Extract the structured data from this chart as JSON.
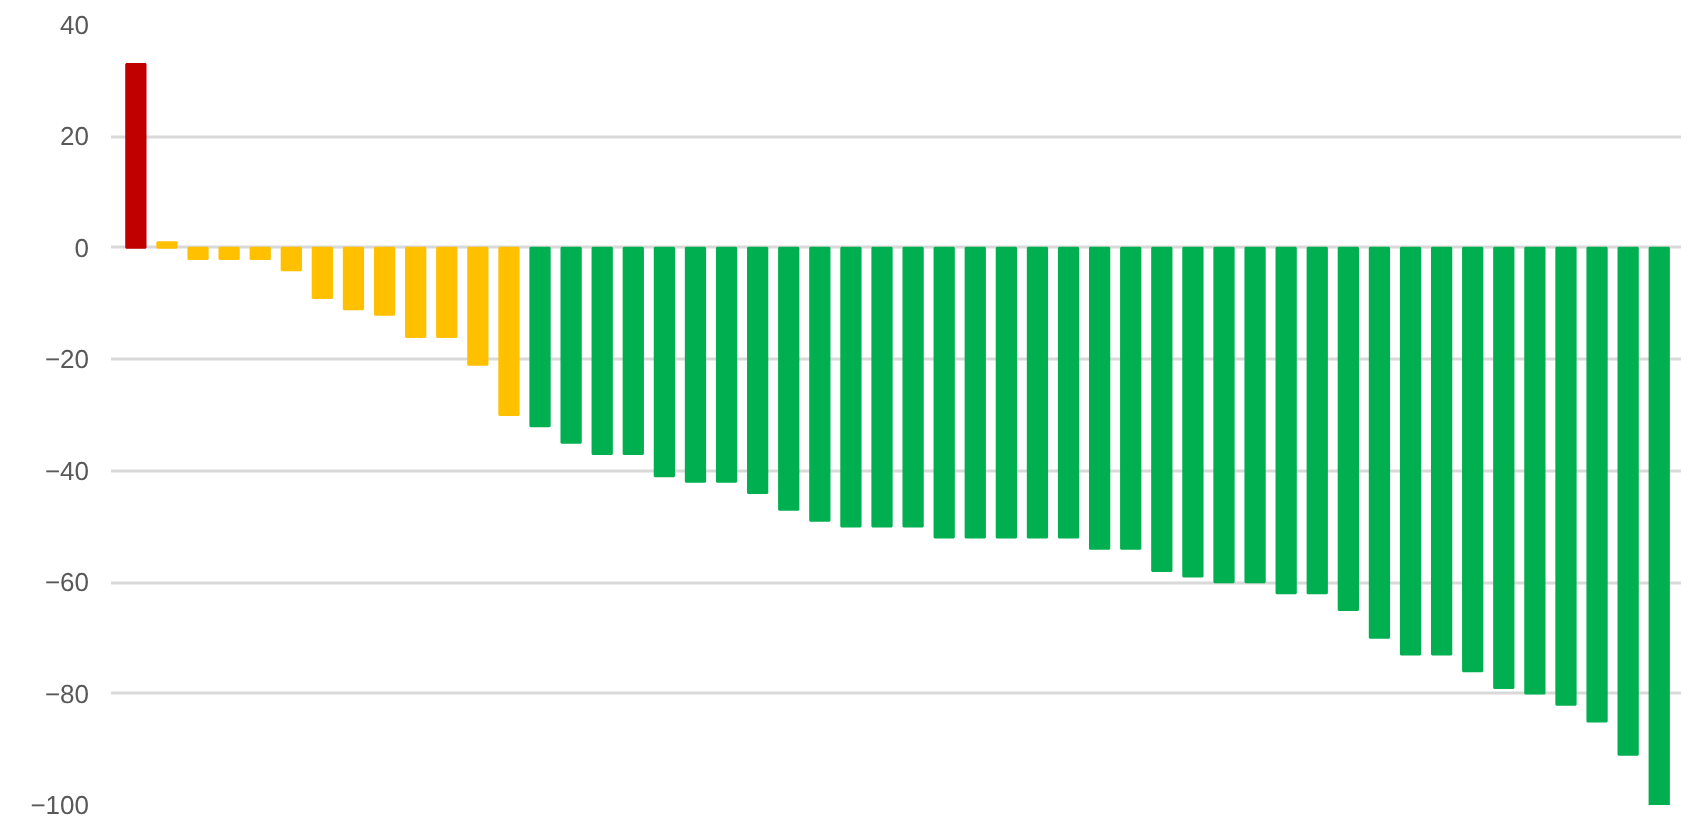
{
  "chart_data": {
    "type": "bar",
    "categories": [
      null,
      null,
      null,
      null,
      null,
      null,
      null,
      null,
      null,
      null,
      null,
      null,
      null,
      null,
      null,
      null,
      null,
      null,
      null,
      null,
      null,
      null,
      null,
      null,
      null,
      null,
      null,
      null,
      null,
      null,
      null,
      null,
      null,
      null,
      null,
      null,
      null,
      null,
      null,
      null,
      null,
      null,
      null,
      null,
      null,
      null,
      null,
      null,
      null,
      null
    ],
    "values": [
      33,
      1,
      -2,
      -2,
      -2,
      -4,
      -9,
      -11,
      -12,
      -16,
      -16,
      -21,
      -30,
      -32,
      -35,
      -37,
      -37,
      -41,
      -42,
      -42,
      -44,
      -47,
      -49,
      -50,
      -50,
      -50,
      -52,
      -52,
      -52,
      -52,
      -52,
      -54,
      -54,
      -58,
      -59,
      -60,
      -60,
      -62,
      -62,
      -65,
      -70,
      -73,
      -73,
      -76,
      -79,
      -80,
      -82,
      -85,
      -91,
      -100
    ],
    "colors": [
      "#c00000",
      "#ffc000",
      "#ffc000",
      "#ffc000",
      "#ffc000",
      "#ffc000",
      "#ffc000",
      "#ffc000",
      "#ffc000",
      "#ffc000",
      "#ffc000",
      "#ffc000",
      "#ffc000",
      "#00b050",
      "#00b050",
      "#00b050",
      "#00b050",
      "#00b050",
      "#00b050",
      "#00b050",
      "#00b050",
      "#00b050",
      "#00b050",
      "#00b050",
      "#00b050",
      "#00b050",
      "#00b050",
      "#00b050",
      "#00b050",
      "#00b050",
      "#00b050",
      "#00b050",
      "#00b050",
      "#00b050",
      "#00b050",
      "#00b050",
      "#00b050",
      "#00b050",
      "#00b050",
      "#00b050",
      "#00b050",
      "#00b050",
      "#00b050",
      "#00b050",
      "#00b050",
      "#00b050",
      "#00b050",
      "#00b050",
      "#00b050",
      "#00b050"
    ],
    "ylim": [
      -100,
      40
    ],
    "yticks": [
      -100,
      -80,
      -60,
      -40,
      -20,
      0,
      20,
      40
    ],
    "grid": "y",
    "tick_labels": "y"
  }
}
